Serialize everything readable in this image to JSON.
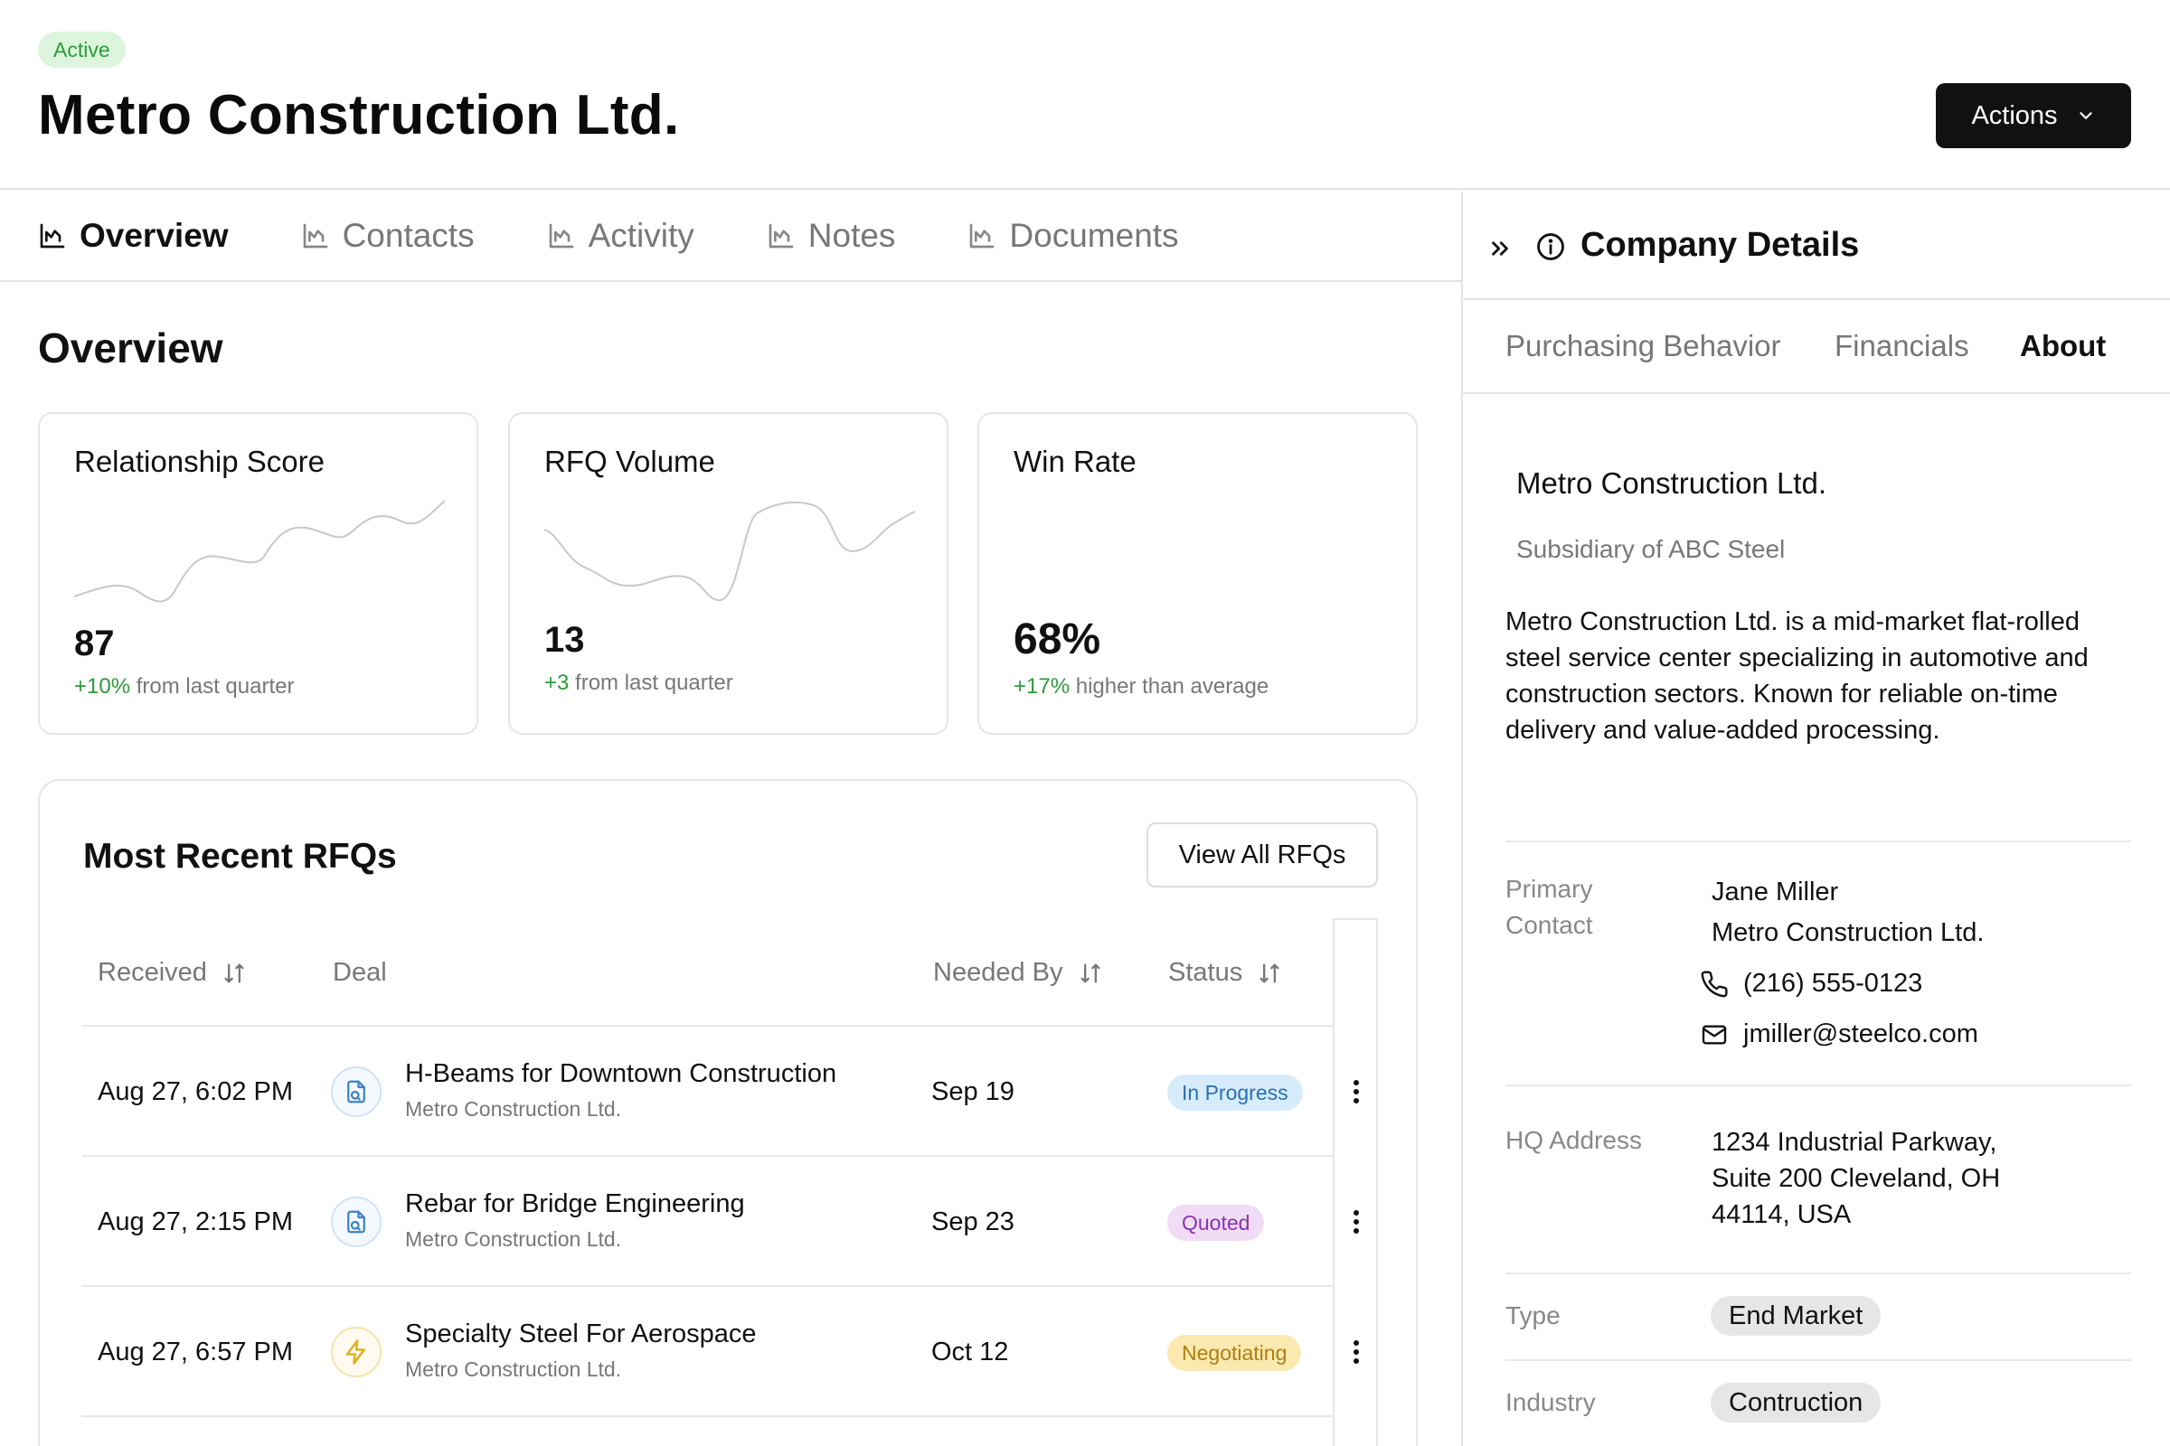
{
  "header": {
    "status": "Active",
    "title": "Metro Construction Ltd.",
    "actions_label": "Actions"
  },
  "tabs": [
    {
      "label": "Overview",
      "icon": "chart-icon",
      "active": true
    },
    {
      "label": "Contacts",
      "icon": "chart-icon",
      "active": false
    },
    {
      "label": "Activity",
      "icon": "chart-icon",
      "active": false
    },
    {
      "label": "Notes",
      "icon": "chart-icon",
      "active": false
    },
    {
      "label": "Documents",
      "icon": "chart-icon",
      "active": false
    }
  ],
  "overview": {
    "title": "Overview",
    "metrics": [
      {
        "label": "Relationship Score",
        "value": "87",
        "change": "+10%",
        "change_text": "from last quarter"
      },
      {
        "label": "RFQ Volume",
        "value": "13",
        "change": "+3",
        "change_text": "from last quarter"
      },
      {
        "label": "Win Rate",
        "value": "68%",
        "change": "+17%",
        "change_text": "higher than average"
      }
    ]
  },
  "rfqs": {
    "title": "Most Recent RFQs",
    "view_all_label": "View All RFQs",
    "columns": {
      "received": "Received",
      "deal": "Deal",
      "needed_by": "Needed By",
      "status": "Status"
    },
    "rows": [
      {
        "received": "Aug 27, 6:02 PM",
        "deal": "H-Beams for Downtown Construction",
        "company": "Metro Construction Ltd.",
        "needed_by": "Sep 19",
        "status": "In Progress",
        "icon": "document-icon"
      },
      {
        "received": "Aug 27, 2:15 PM",
        "deal": "Rebar for Bridge Engineering",
        "company": "Metro Construction Ltd.",
        "needed_by": "Sep 23",
        "status": "Quoted",
        "icon": "document-icon"
      },
      {
        "received": "Aug 27, 6:57 PM",
        "deal": "Specialty Steel For Aerospace",
        "company": "Metro Construction Ltd.",
        "needed_by": "Oct 12",
        "status": "Negotiating",
        "icon": "lightning-icon"
      }
    ]
  },
  "panel": {
    "title": "Company Details",
    "tabs": [
      {
        "label": "Purchasing Behavior",
        "active": false
      },
      {
        "label": "Financials",
        "active": false
      },
      {
        "label": "About",
        "active": true
      }
    ],
    "about": {
      "name": "Metro Construction Ltd.",
      "subsidiary": "Subsidiary of ABC Steel",
      "description": "Metro Construction Ltd. is a mid-market flat-rolled steel service center specializing in automotive and construction sectors. Known for reliable on-time delivery and value-added processing."
    },
    "primary_contact": {
      "label_line1": "Primary",
      "label_line2": "Contact",
      "name": "Jane Miller",
      "company": "Metro Construction Ltd.",
      "phone": "(216) 555-0123",
      "email": "jmiller@steelco.com"
    },
    "hq": {
      "label": "HQ Address",
      "line1": "1234 Industrial Parkway,",
      "line2": "Suite 200 Cleveland, OH",
      "line3": "44114, USA"
    },
    "type": {
      "label": "Type",
      "value": "End Market"
    },
    "industry": {
      "label": "Industry",
      "value": "Contruction"
    }
  }
}
